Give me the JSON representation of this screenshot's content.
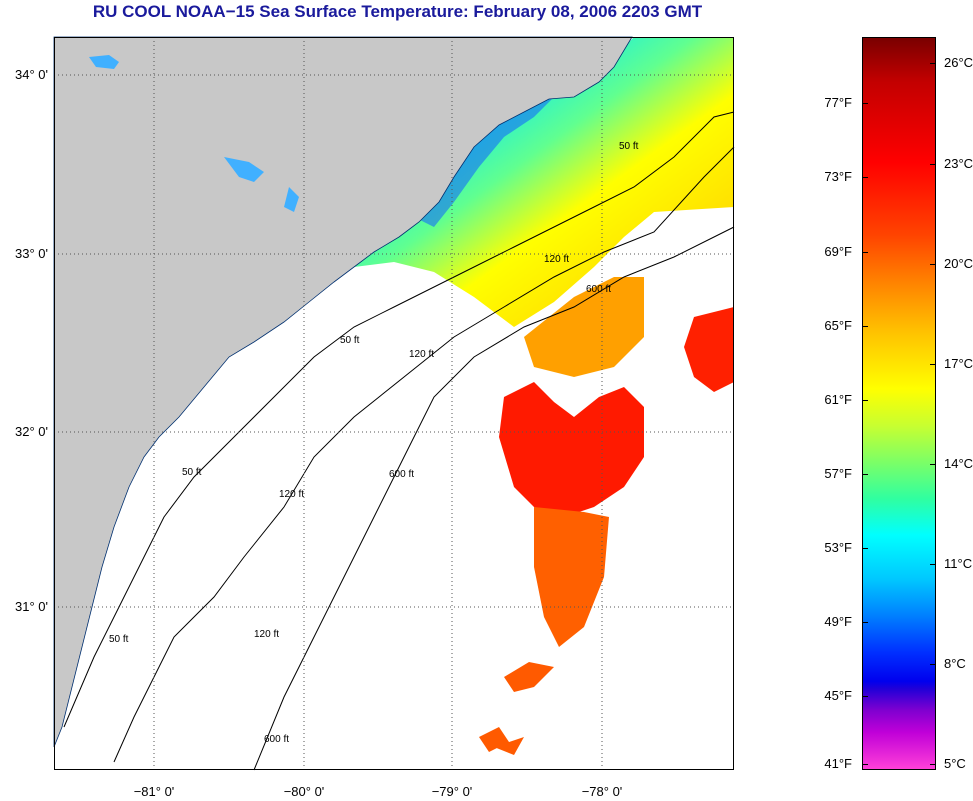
{
  "header": {
    "title": "RU COOL  NOAA−15  Sea Surface Temperature:  February 08, 2006 2203 GMT"
  },
  "map": {
    "lat_labels": [
      "34° 0'",
      "33° 0'",
      "32° 0'",
      "31° 0'"
    ],
    "lon_labels": [
      "−81° 0'",
      "−80° 0'",
      "−79° 0'",
      "−78° 0'"
    ],
    "contours": [
      "50 ft",
      "120 ft",
      "600 ft"
    ],
    "colors": {
      "land": "#c8c8c8",
      "no_data": "#ffffff",
      "grid": "#555555"
    }
  },
  "colorbar": {
    "fahrenheit": [
      "77°F",
      "73°F",
      "69°F",
      "65°F",
      "61°F",
      "57°F",
      "53°F",
      "49°F",
      "45°F",
      "41°F"
    ],
    "celsius": [
      "26°C",
      "23°C",
      "20°C",
      "17°C",
      "14°C",
      "11°C",
      "8°C",
      "5°C"
    ]
  }
}
